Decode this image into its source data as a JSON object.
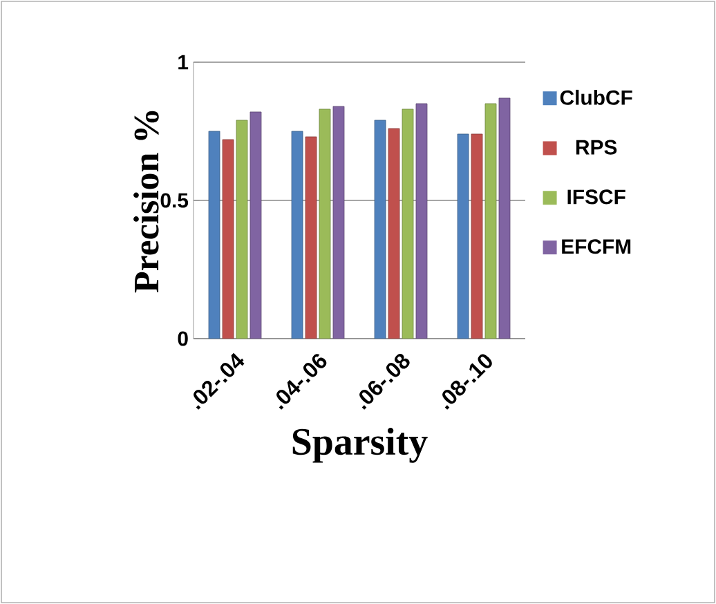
{
  "chart_data": {
    "type": "bar",
    "xlabel": "Sparsity",
    "ylabel": "Precision %",
    "categories": [
      ".02-.04",
      ".04-.06",
      ".06-.08",
      ".08-.10"
    ],
    "series": [
      {
        "name": "ClubCF",
        "color": "#4f81bd",
        "values": [
          0.75,
          0.75,
          0.79,
          0.74
        ]
      },
      {
        "name": "RPS",
        "color": "#c0504d",
        "values": [
          0.72,
          0.73,
          0.76,
          0.74
        ]
      },
      {
        "name": "IFSCF",
        "color": "#9bbb59",
        "values": [
          0.79,
          0.83,
          0.83,
          0.85
        ]
      },
      {
        "name": "EFCFM",
        "color": "#8064a2",
        "values": [
          0.82,
          0.84,
          0.85,
          0.87
        ]
      }
    ],
    "ylim": [
      0,
      1
    ],
    "yticks": [
      0,
      0.5,
      1
    ],
    "grid": "y",
    "legend": "right"
  }
}
